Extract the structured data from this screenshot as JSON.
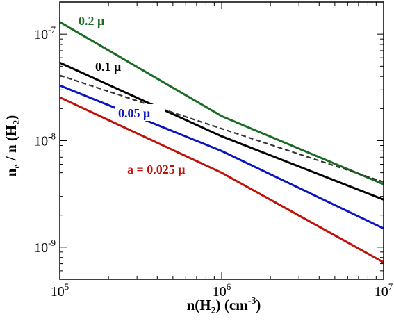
{
  "chart_data": {
    "type": "line",
    "x_scale": "log",
    "y_scale": "log",
    "xlim": [
      100000,
      10000000
    ],
    "ylim": [
      5e-10,
      2e-07
    ],
    "grid": false,
    "xlabel": {
      "base": "n(H",
      "sub": "2",
      "mid": ")  (cm",
      "sup": "-3",
      "end": ")"
    },
    "ylabel": {
      "a": "n",
      "a_sub": "e",
      "b": " / n (H",
      "b_sub": "2",
      "c": ")"
    },
    "x_ticks": [
      {
        "value": 100000,
        "base": "10",
        "exp": "5"
      },
      {
        "value": 1000000,
        "base": "10",
        "exp": "6"
      },
      {
        "value": 10000000,
        "base": "10",
        "exp": "7"
      }
    ],
    "y_ticks": [
      {
        "value": 1e-09,
        "base": "10",
        "exp": "-9"
      },
      {
        "value": 1e-08,
        "base": "10",
        "exp": "-8"
      },
      {
        "value": 1e-07,
        "base": "10",
        "exp": "-7"
      }
    ],
    "series": [
      {
        "name": "0.2 μ",
        "color": "#1a6b24",
        "dash": false,
        "x": [
          100000,
          1000000,
          10000000
        ],
        "y": [
          1.3e-07,
          1.7e-08,
          3.9e-09
        ]
      },
      {
        "name": "0.1 μ",
        "color": "#000000",
        "dash": false,
        "x": [
          100000,
          1000000,
          10000000
        ],
        "y": [
          5.4e-08,
          1.1e-08,
          2.8e-09
        ]
      },
      {
        "name": "",
        "color": "#333333",
        "dash": true,
        "x": [
          100000,
          10000000
        ],
        "y": [
          4.1e-08,
          4.1e-09
        ]
      },
      {
        "name": "0.05 μ",
        "color": "#0a14bf",
        "dash": false,
        "x": [
          100000,
          1000000,
          10000000
        ],
        "y": [
          3.3e-08,
          8e-09,
          1.5e-09
        ]
      },
      {
        "name": "a = 0.025 μ",
        "color": "#c0120b",
        "dash": false,
        "x": [
          100000,
          1000000,
          10000000
        ],
        "y": [
          2.55e-08,
          5e-09,
          7.2e-10
        ]
      }
    ]
  }
}
